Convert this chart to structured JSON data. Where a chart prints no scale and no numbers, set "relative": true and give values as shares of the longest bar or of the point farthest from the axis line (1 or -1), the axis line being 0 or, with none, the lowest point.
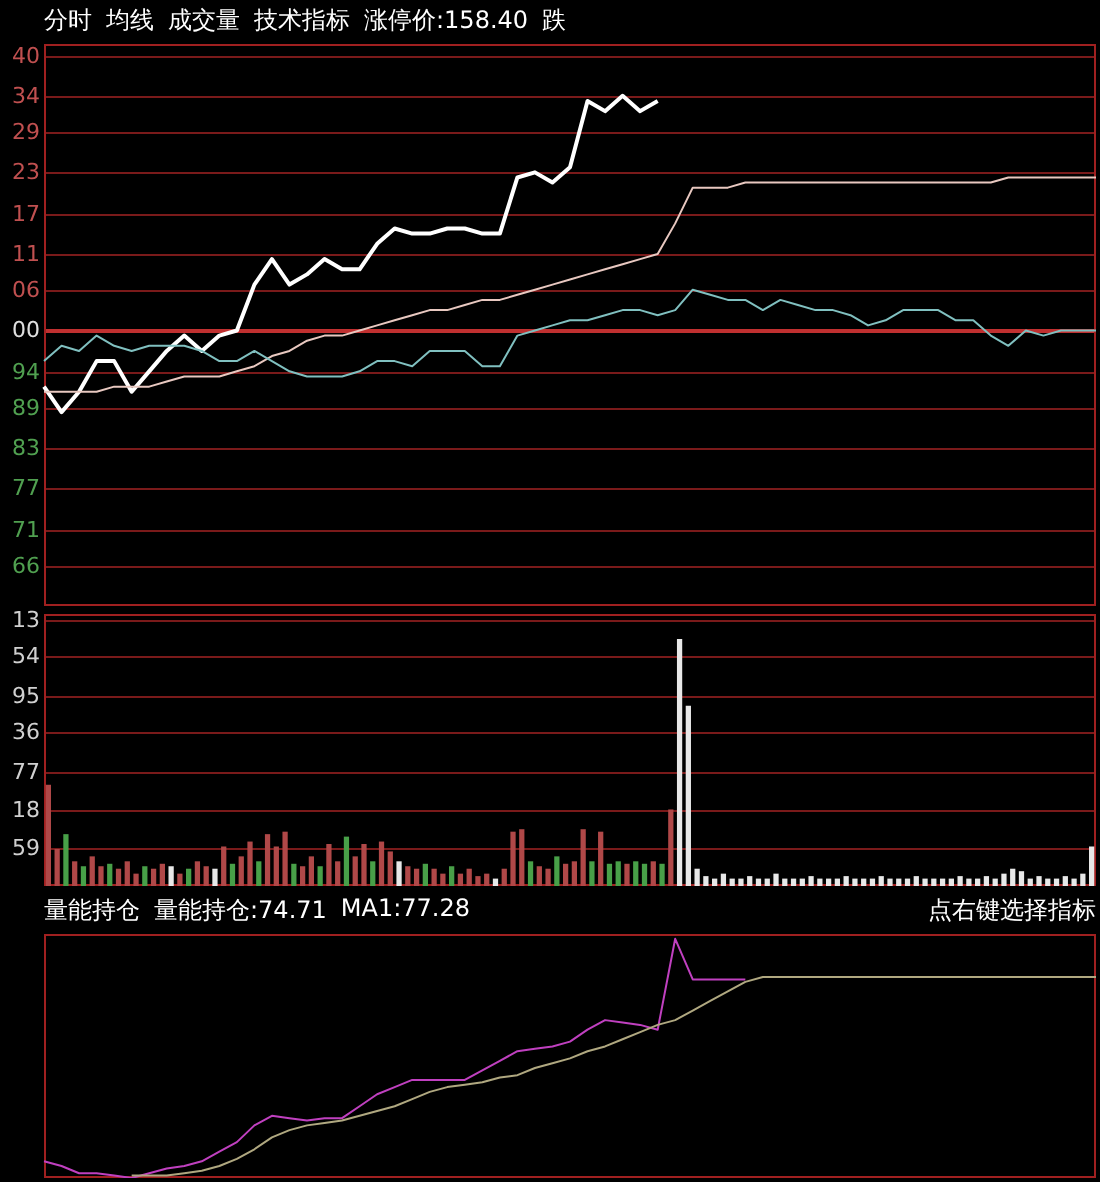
{
  "chart_data": [
    {
      "type": "line",
      "relative": true,
      "marker": "none",
      "tick_labels": false,
      "annotations": [
        "分时",
        "均线",
        "成交量",
        "技术指标",
        "涨停价:158.40",
        "跌",
        "40",
        "34",
        "29",
        "23",
        "17",
        "11",
        "06",
        "00",
        "94",
        "89",
        "83",
        "77",
        "71",
        "66"
      ],
      "ref_lines": [
        {
          "axis": "y",
          "value": 1.08,
          "color": "#7a1a1a"
        },
        {
          "axis": "y",
          "value": 1.0,
          "color": "#7a1a1a"
        },
        {
          "axis": "y",
          "value": 0.93,
          "color": "#7a1a1a"
        },
        {
          "axis": "y",
          "value": 0.85,
          "color": "#7a1a1a"
        },
        {
          "axis": "y",
          "value": 0.77,
          "color": "#7a1a1a"
        },
        {
          "axis": "y",
          "value": 0.69,
          "color": "#7a1a1a"
        },
        {
          "axis": "y",
          "value": 0.62,
          "color": "#7a1a1a"
        },
        {
          "axis": "y",
          "value": 0.54,
          "color": "#c03030"
        },
        {
          "axis": "y",
          "value": 0.46,
          "color": "#7a1a1a"
        },
        {
          "axis": "y",
          "value": 0.39,
          "color": "#7a1a1a"
        },
        {
          "axis": "y",
          "value": 0.31,
          "color": "#7a1a1a"
        },
        {
          "axis": "y",
          "value": 0.23,
          "color": "#7a1a1a"
        },
        {
          "axis": "y",
          "value": 0.15,
          "color": "#7a1a1a"
        },
        {
          "axis": "y",
          "value": 0.08,
          "color": "#7a1a1a"
        }
      ],
      "categories": [
        null,
        null,
        null,
        null,
        null,
        null,
        null,
        null,
        null,
        null,
        null,
        null,
        null,
        null,
        null,
        null,
        null,
        null,
        null,
        null,
        null,
        null,
        null,
        null,
        null,
        null,
        null,
        null,
        null,
        null,
        null,
        null,
        null,
        null,
        null,
        null,
        null,
        null,
        null,
        null,
        null,
        null,
        null,
        null,
        null,
        null,
        null,
        null,
        null,
        null,
        null,
        null,
        null,
        null,
        null,
        null,
        null,
        null,
        null,
        null,
        null
      ],
      "series": [
        {
          "color": "#ffffff",
          "values": [
            0.43,
            0.38,
            0.42,
            0.48,
            0.48,
            0.42,
            0.46,
            0.5,
            0.53,
            0.5,
            0.53,
            0.54,
            0.63,
            0.68,
            0.63,
            0.65,
            0.68,
            0.66,
            0.66,
            0.71,
            0.74,
            0.73,
            0.73,
            0.74,
            0.74,
            0.73,
            0.73,
            0.84,
            0.85,
            0.83,
            0.86,
            0.99,
            0.97,
            1,
            0.97,
            0.99,
            null,
            null,
            null,
            null,
            null,
            null,
            null,
            null,
            null,
            null,
            null,
            null,
            null,
            null,
            null,
            null,
            null,
            null,
            null,
            null,
            null,
            null,
            null,
            null,
            null
          ]
        },
        {
          "color": "#e8c8c0",
          "values": [
            0.42,
            0.42,
            0.42,
            0.42,
            0.43,
            0.43,
            0.43,
            0.44,
            0.45,
            0.45,
            0.45,
            0.46,
            0.47,
            0.49,
            0.5,
            0.52,
            0.53,
            0.53,
            0.54,
            0.55,
            0.56,
            0.57,
            0.58,
            0.58,
            0.59,
            0.6,
            0.6,
            0.61,
            0.62,
            0.63,
            0.64,
            0.65,
            0.66,
            0.67,
            0.68,
            0.69,
            0.75,
            0.82,
            0.82,
            0.82,
            0.83,
            0.83,
            0.83,
            0.83,
            0.83,
            0.83,
            0.83,
            0.83,
            0.83,
            0.83,
            0.83,
            0.83,
            0.83,
            0.83,
            0.83,
            0.84,
            0.84,
            0.84,
            0.84,
            0.84,
            0.84
          ]
        },
        {
          "color": "#80c0c0",
          "values": [
            0.48,
            0.51,
            0.5,
            0.53,
            0.51,
            0.5,
            0.51,
            0.51,
            0.51,
            0.5,
            0.48,
            0.48,
            0.5,
            0.48,
            0.46,
            0.45,
            0.45,
            0.45,
            0.46,
            0.48,
            0.48,
            0.47,
            0.5,
            0.5,
            0.5,
            0.47,
            0.47,
            0.53,
            0.54,
            0.55,
            0.56,
            0.56,
            0.57,
            0.58,
            0.58,
            0.57,
            0.58,
            0.62,
            0.61,
            0.6,
            0.6,
            0.58,
            0.6,
            0.59,
            0.58,
            0.58,
            0.57,
            0.55,
            0.56,
            0.58,
            0.58,
            0.58,
            0.56,
            0.56,
            0.53,
            0.51,
            0.54,
            0.53,
            0.54,
            0.54,
            0.54
          ]
        }
      ]
    },
    {
      "type": "bar",
      "relative": true,
      "tick_labels": false,
      "annotations": [
        "13",
        "54",
        "95",
        "36",
        "77",
        "18",
        "59"
      ],
      "ref_lines": [
        {
          "axis": "y",
          "value": 1.08,
          "color": "#7a1a1a"
        },
        {
          "axis": "y",
          "value": 0.93,
          "color": "#7a1a1a"
        },
        {
          "axis": "y",
          "value": 0.77,
          "color": "#7a1a1a"
        },
        {
          "axis": "y",
          "value": 0.62,
          "color": "#7a1a1a"
        },
        {
          "axis": "y",
          "value": 0.46,
          "color": "#7a1a1a"
        },
        {
          "axis": "y",
          "value": 0.31,
          "color": "#7a1a1a"
        },
        {
          "axis": "y",
          "value": 0.15,
          "color": "#7a1a1a"
        }
      ],
      "categories": [
        null,
        null,
        null,
        null,
        null,
        null,
        null,
        null,
        null,
        null,
        null,
        null,
        null,
        null,
        null,
        null,
        null,
        null,
        null,
        null,
        null,
        null,
        null,
        null,
        null,
        null,
        null,
        null,
        null,
        null,
        null,
        null,
        null,
        null,
        null,
        null,
        null,
        null,
        null,
        null,
        null,
        null,
        null,
        null,
        null,
        null,
        null,
        null,
        null,
        null,
        null,
        null,
        null,
        null,
        null,
        null,
        null,
        null,
        null,
        null,
        null,
        null,
        null,
        null,
        null,
        null,
        null,
        null,
        null,
        null,
        null,
        null,
        null,
        null,
        null,
        null,
        null,
        null,
        null,
        null,
        null,
        null,
        null,
        null,
        null,
        null,
        null,
        null,
        null,
        null,
        null,
        null,
        null,
        null,
        null,
        null,
        null,
        null,
        null,
        null,
        null,
        null,
        null,
        null,
        null,
        null,
        null,
        null,
        null,
        null,
        null,
        null,
        null,
        null,
        null,
        null,
        null,
        null,
        null,
        null
      ],
      "values": [
        0.41,
        0.15,
        0.21,
        0.1,
        0.08,
        0.12,
        0.08,
        0.09,
        0.07,
        0.1,
        0.05,
        0.08,
        0.07,
        0.09,
        0.08,
        0.05,
        0.07,
        0.1,
        0.08,
        0.07,
        0.16,
        0.09,
        0.12,
        0.18,
        0.1,
        0.21,
        0.16,
        0.22,
        0.09,
        0.08,
        0.12,
        0.08,
        0.17,
        0.1,
        0.2,
        0.12,
        0.17,
        0.1,
        0.18,
        0.14,
        0.1,
        0.08,
        0.07,
        0.09,
        0.07,
        0.05,
        0.08,
        0.05,
        0.07,
        0.04,
        0.05,
        0.03,
        0.07,
        0.22,
        0.23,
        0.1,
        0.08,
        0.07,
        0.12,
        0.09,
        0.1,
        0.23,
        0.1,
        0.22,
        0.09,
        0.1,
        0.09,
        0.1,
        0.09,
        0.1,
        0.09,
        0.31,
        1,
        0.73,
        0.07,
        0.04,
        0.03,
        0.05,
        0.03,
        0.03,
        0.04,
        0.03,
        0.03,
        0.05,
        0.03,
        0.03,
        0.03,
        0.04,
        0.03,
        0.03,
        0.03,
        0.04,
        0.03,
        0.03,
        0.03,
        0.04,
        0.03,
        0.03,
        0.03,
        0.04,
        0.03,
        0.03,
        0.03,
        0.03,
        0.04,
        0.03,
        0.03,
        0.04,
        0.03,
        0.05,
        0.07,
        0.06,
        0.03,
        0.04,
        0.03,
        0.03,
        0.04,
        0.03,
        0.05,
        0.16
      ],
      "colors": [
        "#b04848",
        "#b04848",
        "#48a048",
        "#b04848",
        "#48a048",
        "#b04848",
        "#b04848",
        "#48a048",
        "#b04848",
        "#b04848",
        "#b04848",
        "#48a048",
        "#b04848",
        "#b04848",
        "#e8e8e8",
        "#b04848",
        "#48a048",
        "#b04848",
        "#b04848",
        "#e8e8e8",
        "#b04848",
        "#48a048",
        "#b04848",
        "#b04848",
        "#48a048",
        "#b04848",
        "#b04848",
        "#b04848",
        "#48a048",
        "#b04848",
        "#b04848",
        "#48a048",
        "#b04848",
        "#b04848",
        "#48a048",
        "#b04848",
        "#b04848",
        "#48a048",
        "#b04848",
        "#b04848",
        "#e8e8e8",
        "#b04848",
        "#b04848",
        "#48a048",
        "#b04848",
        "#b04848",
        "#48a048",
        "#b04848",
        "#b04848",
        "#b04848",
        "#b04848",
        "#e8e8e8",
        "#b04848",
        "#b04848",
        "#b04848",
        "#48a048",
        "#b04848",
        "#b04848",
        "#48a048",
        "#b04848",
        "#b04848",
        "#b04848",
        "#48a048",
        "#b04848",
        "#48a048",
        "#48a048",
        "#b04848",
        "#48a048",
        "#48a048",
        "#b04848",
        "#48a048",
        "#b04848",
        "#e8e8e8",
        "#e8e8e8",
        "#e8e8e8",
        "#e8e8e8",
        "#e8e8e8",
        "#e8e8e8",
        "#e8e8e8",
        "#e8e8e8",
        "#e8e8e8",
        "#e8e8e8",
        "#e8e8e8",
        "#e8e8e8",
        "#e8e8e8",
        "#e8e8e8",
        "#e8e8e8",
        "#e8e8e8",
        "#e8e8e8",
        "#e8e8e8",
        "#e8e8e8",
        "#e8e8e8",
        "#e8e8e8",
        "#e8e8e8",
        "#e8e8e8",
        "#e8e8e8",
        "#e8e8e8",
        "#e8e8e8",
        "#e8e8e8",
        "#e8e8e8",
        "#e8e8e8",
        "#e8e8e8",
        "#e8e8e8",
        "#e8e8e8",
        "#e8e8e8",
        "#e8e8e8",
        "#e8e8e8",
        "#e8e8e8",
        "#e8e8e8",
        "#e8e8e8",
        "#e8e8e8",
        "#e8e8e8",
        "#e8e8e8",
        "#e8e8e8",
        "#e8e8e8",
        "#e8e8e8",
        "#e8e8e8",
        "#e8e8e8",
        "#e8e8e8",
        "#e8e8e8"
      ]
    },
    {
      "type": "line",
      "title": "量能持仓",
      "annotations": [
        "量能持仓:74.71",
        "MA1:77.28",
        "点右键选择指标"
      ],
      "relative": true,
      "tick_labels": false,
      "marker": "none",
      "categories": [
        null,
        null,
        null,
        null,
        null,
        null,
        null,
        null,
        null,
        null,
        null,
        null,
        null,
        null,
        null,
        null,
        null,
        null,
        null,
        null,
        null,
        null,
        null,
        null,
        null,
        null,
        null,
        null,
        null,
        null,
        null,
        null,
        null,
        null,
        null,
        null,
        null,
        null,
        null,
        null,
        null,
        null,
        null,
        null,
        null,
        null,
        null,
        null,
        null,
        null,
        null,
        null,
        null,
        null,
        null,
        null,
        null,
        null,
        null,
        null,
        null
      ],
      "series": [
        {
          "color": "#c040c0",
          "values": [
            0.07,
            0.05,
            0.02,
            0.02,
            0.01,
            0,
            0.02,
            0.04,
            0.05,
            0.07,
            0.11,
            0.15,
            0.22,
            0.26,
            0.25,
            0.24,
            0.25,
            0.25,
            0.3,
            0.35,
            0.38,
            0.41,
            0.41,
            0.41,
            0.41,
            0.45,
            0.49,
            0.53,
            0.54,
            0.55,
            0.57,
            0.62,
            0.66,
            0.65,
            0.64,
            0.62,
            1,
            0.83,
            0.83,
            0.83,
            0.83,
            null,
            null,
            null,
            null,
            null,
            null,
            null,
            null,
            null,
            null,
            null,
            null,
            null,
            null,
            null,
            null,
            null,
            null,
            null,
            null
          ]
        },
        {
          "color": "#b0a880",
          "values": [
            null,
            null,
            null,
            null,
            null,
            0.01,
            0.01,
            0.01,
            0.02,
            0.03,
            0.05,
            0.08,
            0.12,
            0.17,
            0.2,
            0.22,
            0.23,
            0.24,
            0.26,
            0.28,
            0.3,
            0.33,
            0.36,
            0.38,
            0.39,
            0.4,
            0.42,
            0.43,
            0.46,
            0.48,
            0.5,
            0.53,
            0.55,
            0.58,
            0.61,
            0.64,
            0.66,
            0.7,
            0.74,
            0.78,
            0.82,
            0.84,
            0.84,
            0.84,
            0.84,
            0.84,
            0.84,
            0.84,
            0.84,
            0.84,
            0.84,
            0.84,
            0.84,
            0.84,
            0.84,
            0.84,
            0.84,
            0.84,
            0.84,
            0.84,
            0.84
          ]
        }
      ]
    }
  ]
}
